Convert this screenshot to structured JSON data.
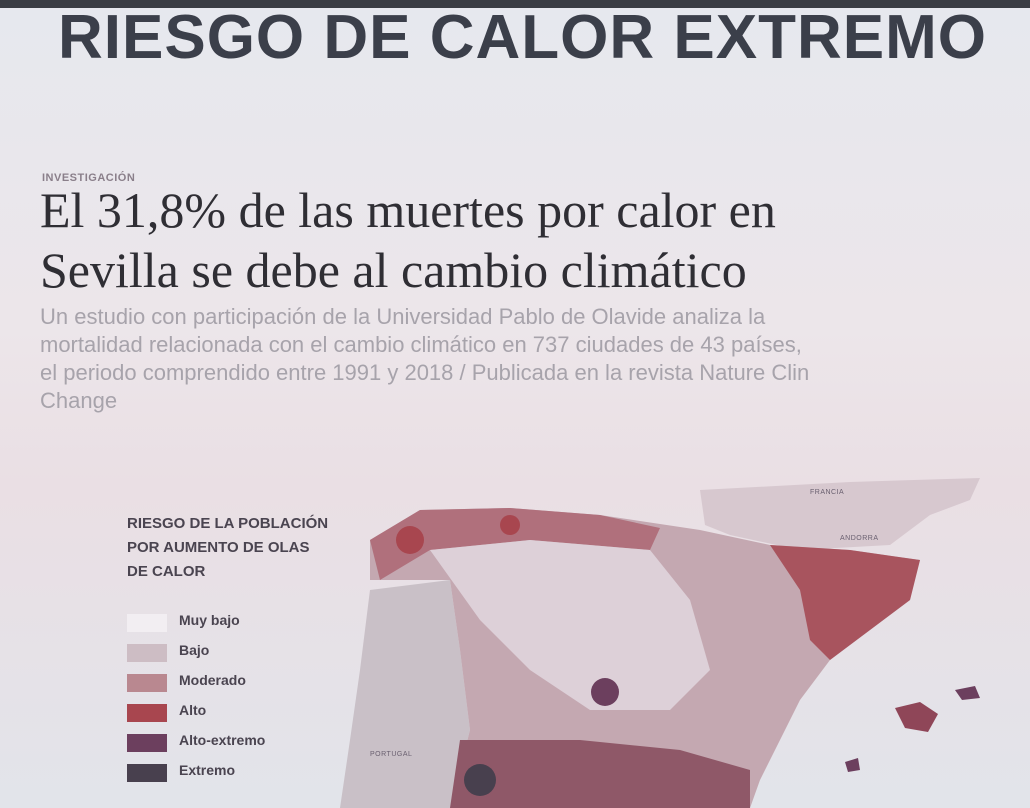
{
  "title": "RIESGO DE CALOR EXTREMO",
  "kicker": "INVESTIGACIÓN",
  "headline": [
    "El 31,8% de las muertes por calor en",
    "Sevilla se debe al cambio climático"
  ],
  "subtitle": [
    "Un estudio con participación de la Universidad Pablo de Olavide analiza la",
    "mortalidad relacionada con el cambio climático en 737 ciudades de 43 países,",
    "el periodo comprendido entre 1991 y 2018 / Publicada en la revista Nature Clin",
    "Change"
  ],
  "legend": {
    "title": [
      "RIESGO DE LA POBLACIÓN",
      "POR AUMENTO DE OLAS",
      "DE CALOR"
    ],
    "items": [
      {
        "label": "Muy bajo",
        "color": "#f2eef2"
      },
      {
        "label": "Bajo",
        "color": "#cdbdc4"
      },
      {
        "label": "Moderado",
        "color": "#b98890"
      },
      {
        "label": "Alto",
        "color": "#a8464f"
      },
      {
        "label": "Alto-extremo",
        "color": "#6c3f5e"
      },
      {
        "label": "Extremo",
        "color": "#48404e"
      }
    ]
  },
  "map_labels": {
    "france": "FRANCIA",
    "andorra": "ANDORRA",
    "portugal": "PORTUGAL"
  }
}
